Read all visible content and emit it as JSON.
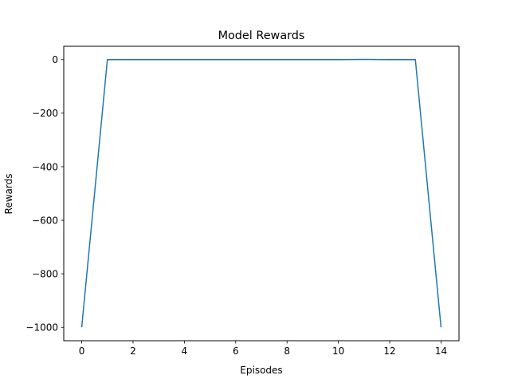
{
  "chart_data": {
    "type": "line",
    "title": "Model Rewards",
    "xlabel": "Episodes",
    "ylabel": "Rewards",
    "xlim": [
      -0.7,
      14.7
    ],
    "ylim": [
      -1050,
      50
    ],
    "xticks": [
      0,
      2,
      4,
      6,
      8,
      10,
      12,
      14
    ],
    "yticks": [
      0,
      -200,
      -400,
      -600,
      -800,
      -1000
    ],
    "grid": false,
    "series": [
      {
        "color": "#1f77b4",
        "x": [
          0,
          1,
          2,
          3,
          4,
          5,
          6,
          7,
          8,
          9,
          10,
          11,
          12,
          13,
          14
        ],
        "values": [
          -1000,
          0,
          0,
          0,
          0,
          0,
          0,
          0,
          0,
          0,
          0,
          1,
          0,
          0,
          -1000
        ]
      }
    ]
  }
}
